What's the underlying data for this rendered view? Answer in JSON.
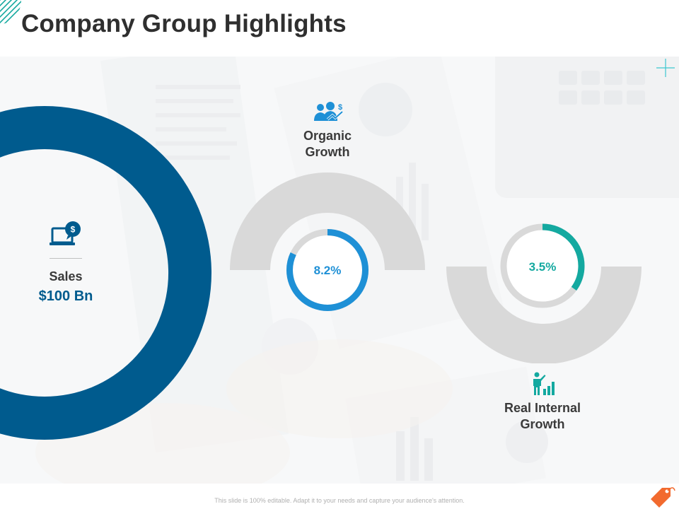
{
  "slide": {
    "title": "Company Group Highlights",
    "footer_note": "This slide is 100% editable. Adapt it to your needs and capture your audience's attention."
  },
  "colors": {
    "sales_blue": "#005b8e",
    "organic_blue": "#1e90d6",
    "internal_teal": "#14a9a0",
    "gauge_gray": "#d9d9d9",
    "title_text": "#2f2f2f",
    "accent_orange": "#f26a2e"
  },
  "metrics": {
    "sales": {
      "label": "Sales",
      "value": "$100 Bn",
      "icon": "laptop-dollar-icon"
    },
    "organic_growth": {
      "label_line1": "Organic",
      "label_line2": "Growth",
      "value": "8.2%",
      "ring_fraction": 0.82,
      "icon": "team-growth-icon"
    },
    "real_internal_growth": {
      "label_line1": "Real Internal",
      "label_line2": "Growth",
      "value": "3.5%",
      "ring_fraction": 0.35,
      "icon": "presenter-chart-icon"
    }
  }
}
